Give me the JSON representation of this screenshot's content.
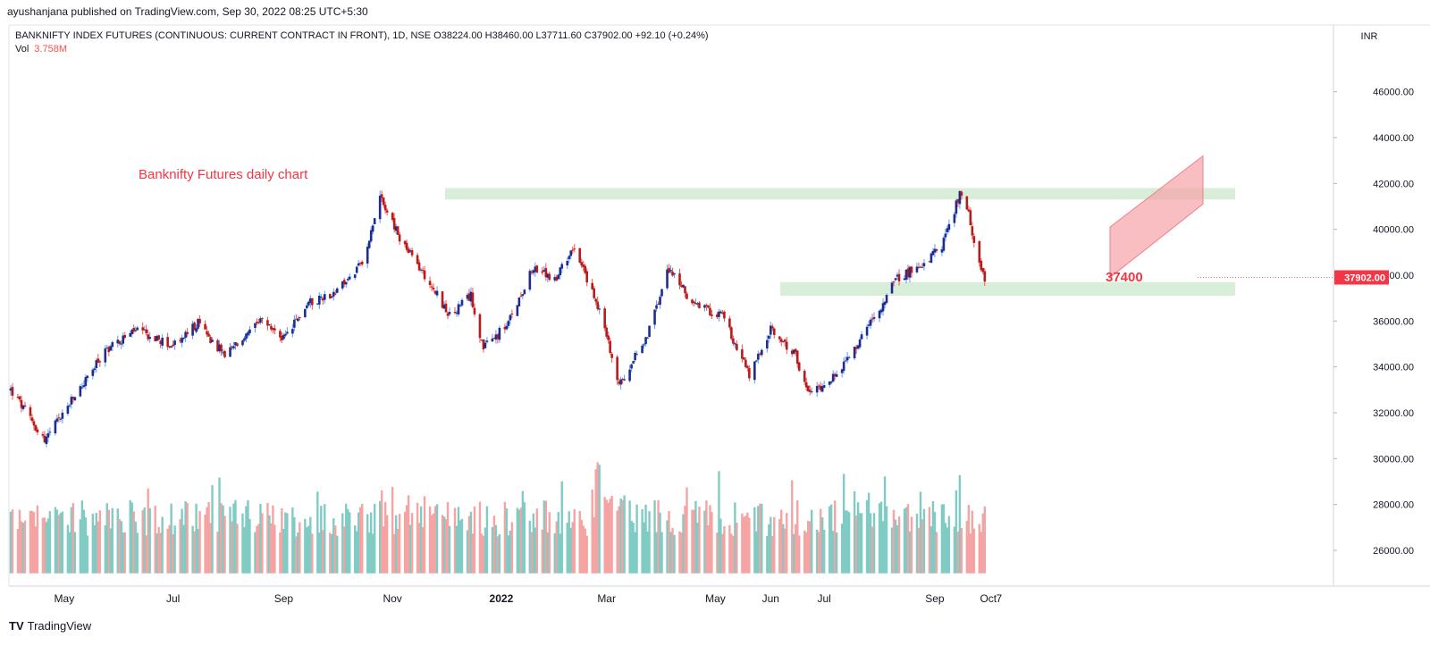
{
  "header": {
    "published_line": "ayushanjana published on TradingView.com, Sep 30, 2022 08:25 UTC+5:30"
  },
  "legend": {
    "symbol_line": "BANKNIFTY INDEX FUTURES (CONTINUOUS: CURRENT CONTRACT IN FRONT), 1D, NSE  O38224.00  H38460.00  L37711.60  C37902.00  +92.10 (+0.24%)",
    "vol_label": "Vol",
    "vol_value": "3.758M"
  },
  "footer": {
    "brand": "TradingView",
    "logo": "TV"
  },
  "colors": {
    "up": "#5b9cf6",
    "down": "#ef5350",
    "up_body": "#1e2c8c",
    "down_body": "#b71c1c",
    "vol_up": "#80cbc4",
    "vol_down": "#f5a3a3",
    "zone": "#d9eed9",
    "channel": "#f5a3a7",
    "annotation": "#f23645",
    "price_tag_bg": "#f23645"
  },
  "chart_data": {
    "type": "candlestick",
    "currency": "INR",
    "y_axis": {
      "ticks": [
        26000,
        28000,
        30000,
        32000,
        34000,
        36000,
        38000,
        40000,
        42000,
        44000,
        46000
      ],
      "tick_format": "00.00",
      "ylim": [
        25000,
        47200
      ]
    },
    "x_axis": {
      "labels": [
        "May",
        "Jul",
        "Sep",
        "Nov",
        "2022",
        "Mar",
        "May",
        "Jun",
        "Jul",
        "Sep",
        "Oct",
        "7"
      ]
    },
    "last_price": "37902.00",
    "annotations": {
      "title": "Banknifty Futures daily chart",
      "level_label": "37400",
      "resistance_zone": [
        41300,
        41800
      ],
      "support_zone": [
        37100,
        37700
      ],
      "channel": {
        "lower_start": 37900,
        "lower_end": 41100,
        "upper_start": 40100,
        "upper_end": 43200
      }
    },
    "anchors": [
      {
        "date": "2021-04-01",
        "price": 33000
      },
      {
        "date": "2021-04-20",
        "price": 30800
      },
      {
        "date": "2021-05-05",
        "price": 32500
      },
      {
        "date": "2021-05-25",
        "price": 34800
      },
      {
        "date": "2021-06-10",
        "price": 35600
      },
      {
        "date": "2021-07-01",
        "price": 34900
      },
      {
        "date": "2021-07-15",
        "price": 35900
      },
      {
        "date": "2021-07-30",
        "price": 34500
      },
      {
        "date": "2021-08-20",
        "price": 36000
      },
      {
        "date": "2021-09-01",
        "price": 35200
      },
      {
        "date": "2021-09-15",
        "price": 36800
      },
      {
        "date": "2021-10-01",
        "price": 37300
      },
      {
        "date": "2021-10-15",
        "price": 38500
      },
      {
        "date": "2021-10-25",
        "price": 41500
      },
      {
        "date": "2021-11-05",
        "price": 39600
      },
      {
        "date": "2021-11-25",
        "price": 37300
      },
      {
        "date": "2021-12-03",
        "price": 36200
      },
      {
        "date": "2021-12-15",
        "price": 37100
      },
      {
        "date": "2021-12-22",
        "price": 34800
      },
      {
        "date": "2022-01-05",
        "price": 35900
      },
      {
        "date": "2022-01-18",
        "price": 38300
      },
      {
        "date": "2022-02-01",
        "price": 37800
      },
      {
        "date": "2022-02-10",
        "price": 39300
      },
      {
        "date": "2022-02-25",
        "price": 36500
      },
      {
        "date": "2022-03-08",
        "price": 33200
      },
      {
        "date": "2022-03-25",
        "price": 35600
      },
      {
        "date": "2022-04-05",
        "price": 38300
      },
      {
        "date": "2022-04-20",
        "price": 36600
      },
      {
        "date": "2022-05-05",
        "price": 36300
      },
      {
        "date": "2022-05-20",
        "price": 33600
      },
      {
        "date": "2022-06-01",
        "price": 35600
      },
      {
        "date": "2022-06-15",
        "price": 34500
      },
      {
        "date": "2022-06-22",
        "price": 32800
      },
      {
        "date": "2022-07-10",
        "price": 33800
      },
      {
        "date": "2022-07-25",
        "price": 35600
      },
      {
        "date": "2022-08-10",
        "price": 37800
      },
      {
        "date": "2022-08-25",
        "price": 38500
      },
      {
        "date": "2022-09-05",
        "price": 39300
      },
      {
        "date": "2022-09-15",
        "price": 41500
      },
      {
        "date": "2022-09-20",
        "price": 40600
      },
      {
        "date": "2022-09-23",
        "price": 39300
      },
      {
        "date": "2022-09-29",
        "price": 37902
      }
    ]
  }
}
